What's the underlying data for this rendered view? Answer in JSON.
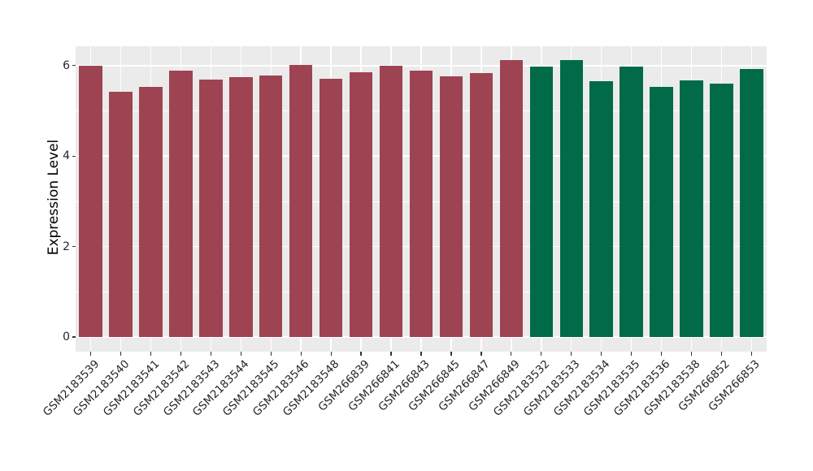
{
  "chart_data": {
    "type": "bar",
    "title": "",
    "xlabel": "",
    "ylabel": "Expression Level",
    "yticks": [
      0,
      2,
      4,
      6
    ],
    "minor_gridlines": [
      1,
      3,
      5
    ],
    "ylim": [
      -0.32,
      6.44
    ],
    "grid": "white major and minor horizontal lines, white vertical lines at each bar center, on gray panel",
    "legend_position": "none",
    "panel_background": "#EBEBEB",
    "gridline_color": "#FFFFFF",
    "tick_color": "#333333",
    "categories": [
      "GSM2183539",
      "GSM2183540",
      "GSM2183541",
      "GSM2183542",
      "GSM2183543",
      "GSM2183544",
      "GSM2183545",
      "GSM2183546",
      "GSM2183548",
      "GSM266839",
      "GSM266841",
      "GSM266843",
      "GSM266845",
      "GSM266847",
      "GSM266849",
      "GSM2183532",
      "GSM2183533",
      "GSM2183534",
      "GSM2183535",
      "GSM2183536",
      "GSM2183538",
      "GSM266852",
      "GSM266853"
    ],
    "values": [
      6.0,
      5.43,
      5.53,
      5.88,
      5.7,
      5.74,
      5.79,
      6.02,
      5.71,
      5.85,
      6.0,
      5.88,
      5.77,
      5.83,
      6.13,
      5.98,
      6.13,
      5.65,
      5.98,
      5.53,
      5.67,
      5.61,
      5.92
    ],
    "bar_groups": [
      "group1",
      "group1",
      "group1",
      "group1",
      "group1",
      "group1",
      "group1",
      "group1",
      "group1",
      "group1",
      "group1",
      "group1",
      "group1",
      "group1",
      "group1",
      "group2",
      "group2",
      "group2",
      "group2",
      "group2",
      "group2",
      "group2",
      "group2"
    ],
    "group_colors": {
      "group1": "#9E4351",
      "group2": "#006A49"
    }
  }
}
